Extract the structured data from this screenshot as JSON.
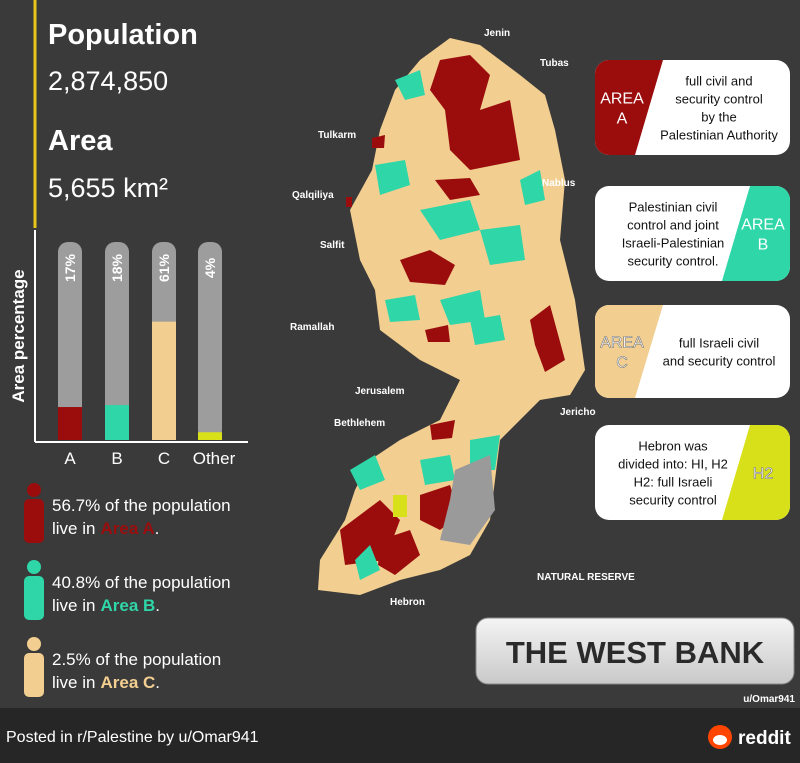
{
  "stats": {
    "population_label": "Population",
    "population": "2,874,850",
    "area_label": "Area",
    "area": "5,655 km²"
  },
  "chart_data": {
    "type": "bar",
    "y_label": "Area percentage",
    "categories": [
      "A",
      "B",
      "C",
      "Other"
    ],
    "values": [
      17,
      18,
      61,
      4
    ],
    "value_labels": [
      "17%",
      "18%",
      "61%",
      "4%"
    ],
    "colors": [
      "#9b0d0d",
      "#2fd6a8",
      "#f2cf91",
      "#d8e01a"
    ],
    "ylim": [
      0,
      100
    ]
  },
  "population_notes": [
    {
      "text": "56.7% of the population",
      "live": "live in",
      "area": "Area A",
      "end": ".",
      "color": "#9b0d0d"
    },
    {
      "text": "40.8% of the population",
      "live": "live in",
      "area": "Area B",
      "end": ".",
      "color": "#2fd6a8"
    },
    {
      "text": "2.5% of the population",
      "live": "live in",
      "area": "Area C",
      "end": ".",
      "color": "#f2cf91"
    }
  ],
  "legend_boxes": [
    {
      "badge": [
        "AREA",
        "A"
      ],
      "lines": [
        "full civil and",
        "security control",
        "by the",
        "Palestinian Authority"
      ]
    },
    {
      "badge": [
        "AREA",
        "B"
      ],
      "lines": [
        "Palestinian civil",
        "control and joint",
        "Israeli-Palestinian",
        "security control."
      ]
    },
    {
      "badge": [
        "AREA",
        "C"
      ],
      "lines": [
        "full Israeli civil",
        "and security control"
      ]
    },
    {
      "badge": [
        "H2"
      ],
      "lines": [
        "Hebron was",
        "divided into: HI, H2",
        "H2: full Israeli",
        "security control"
      ]
    }
  ],
  "map_labels": [
    "Jenin",
    "Tubas",
    "Tulkarm",
    "Nablus",
    "Qalqiliya",
    "Salfit",
    "Ramallah",
    "Jericho",
    "Jerusalem",
    "Bethlehem",
    "Hebron",
    "NATURAL RESERVE"
  ],
  "title": "THE WEST BANK",
  "credit": "u/Omar941",
  "footer": {
    "posted": "Posted in r/Palestine by u/Omar941",
    "brand": "reddit"
  }
}
